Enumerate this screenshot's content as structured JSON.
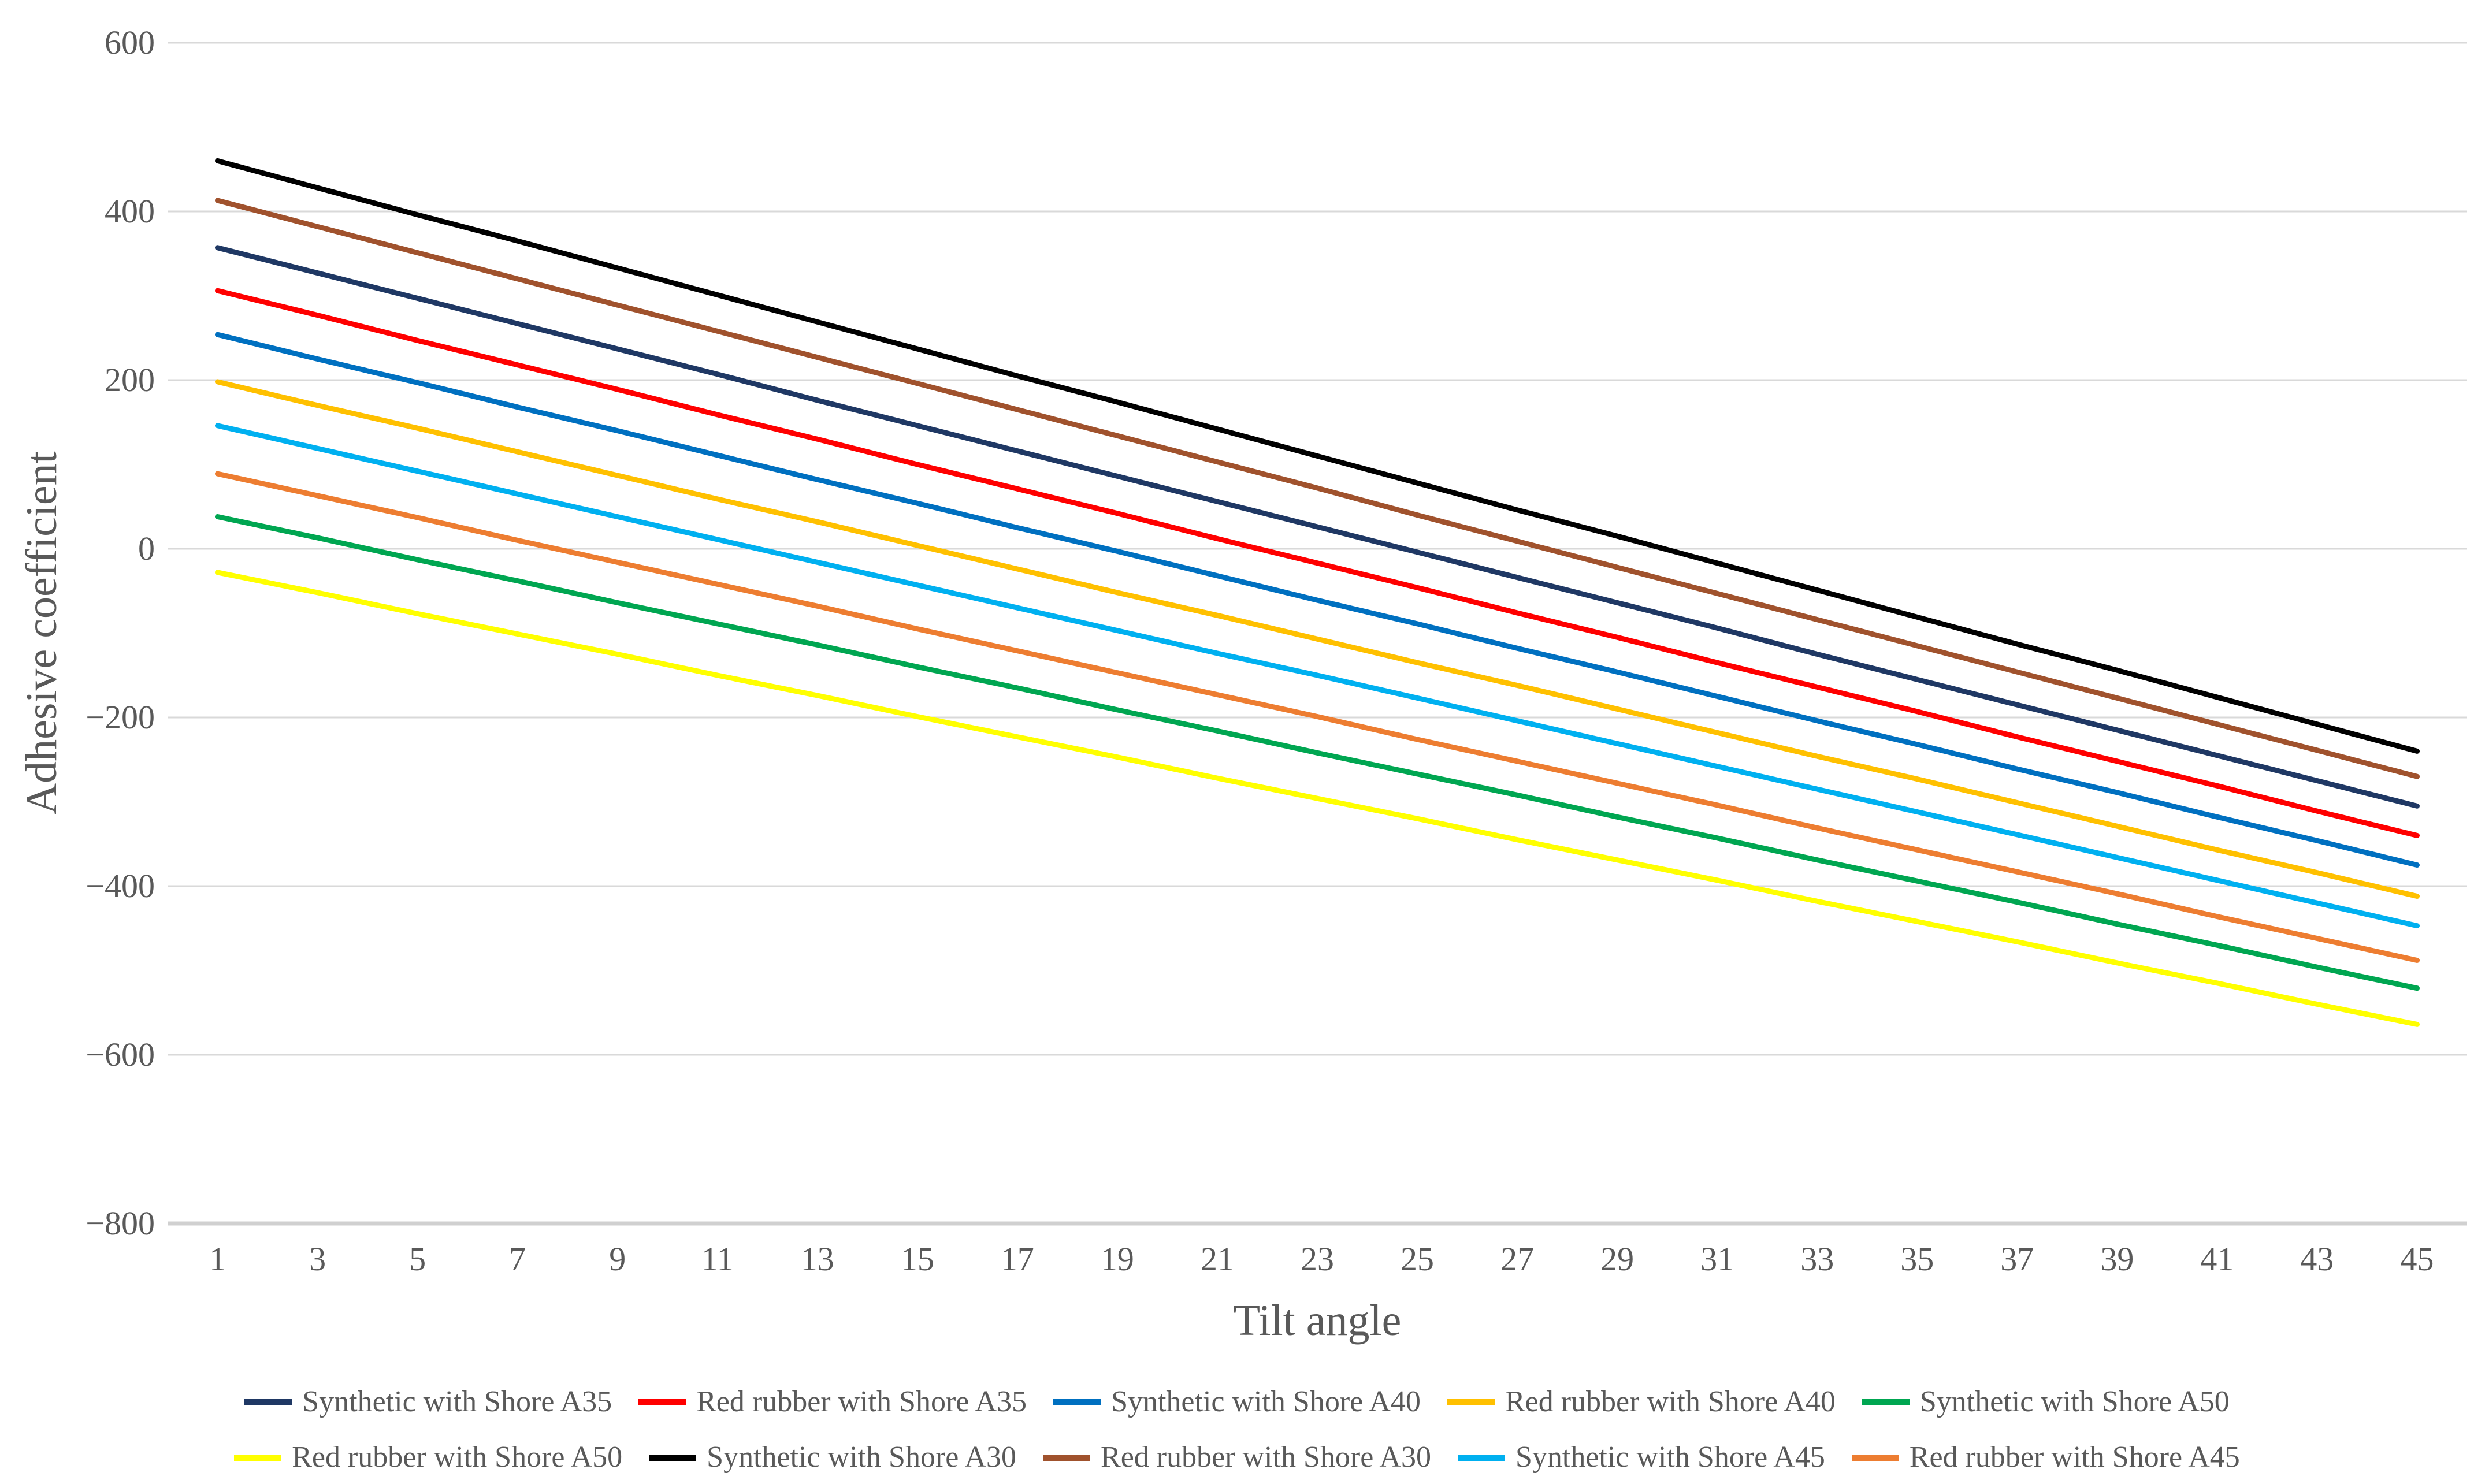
{
  "chart_data": {
    "type": "line",
    "title": "",
    "xlabel": "Tilt angle",
    "ylabel": "Adhesive coefficient",
    "x_tick_labels": [
      "1",
      "3",
      "5",
      "7",
      "9",
      "11",
      "13",
      "15",
      "17",
      "19",
      "21",
      "23",
      "25",
      "27",
      "29",
      "31",
      "33",
      "35",
      "37",
      "39",
      "41",
      "43",
      "45"
    ],
    "ylim": [
      -800,
      600
    ],
    "y_ticks": [
      600,
      400,
      200,
      0,
      -200,
      -400,
      -600,
      -800
    ],
    "y_tick_labels": [
      "600",
      "400",
      "200",
      "0",
      "−200",
      "−400",
      "−600",
      "−800"
    ],
    "grid": "horizontal",
    "legend_position": "bottom",
    "legend_rows": 2,
    "series": [
      {
        "name": "Synthetic with Shore A35",
        "color": "#1F3864",
        "values": [
          357,
          327,
          297,
          267,
          237,
          207,
          176,
          146,
          116,
          86,
          56,
          26,
          -4,
          -34,
          -64,
          -94,
          -125,
          -155,
          -185,
          -215,
          -245,
          -275,
          -305
        ]
      },
      {
        "name": "Red rubber with Shore A35",
        "color": "#FF0000",
        "values": [
          306,
          277,
          247,
          218,
          189,
          159,
          130,
          100,
          71,
          42,
          12,
          -17,
          -46,
          -76,
          -105,
          -135,
          -164,
          -193,
          -223,
          -252,
          -281,
          -311,
          -340
        ]
      },
      {
        "name": "Synthetic with Shore A40",
        "color": "#0070C0",
        "values": [
          254,
          225,
          197,
          168,
          140,
          111,
          82,
          54,
          25,
          -3,
          -32,
          -61,
          -89,
          -118,
          -146,
          -175,
          -204,
          -232,
          -261,
          -289,
          -318,
          -346,
          -375
        ]
      },
      {
        "name": "Red rubber with Shore A40",
        "color": "#FFC000",
        "values": [
          198,
          170,
          143,
          115,
          87,
          59,
          32,
          4,
          -24,
          -52,
          -79,
          -107,
          -135,
          -162,
          -190,
          -218,
          -246,
          -273,
          -301,
          -329,
          -357,
          -384,
          -412
        ]
      },
      {
        "name": "Synthetic with Shore A50",
        "color": "#00A651",
        "values": [
          38,
          13,
          -13,
          -38,
          -64,
          -89,
          -114,
          -140,
          -165,
          -191,
          -216,
          -242,
          -267,
          -292,
          -318,
          -343,
          -369,
          -394,
          -419,
          -445,
          -470,
          -496,
          -521
        ]
      },
      {
        "name": "Red rubber with Shore A50",
        "color": "#FFFF00",
        "values": [
          -28,
          -52,
          -77,
          -101,
          -125,
          -150,
          -174,
          -199,
          -223,
          -247,
          -272,
          -296,
          -320,
          -345,
          -369,
          -393,
          -418,
          -442,
          -466,
          -491,
          -515,
          -540,
          -564
        ]
      },
      {
        "name": "Synthetic with Shore A30",
        "color": "#000000",
        "values": [
          460,
          428,
          396,
          365,
          333,
          301,
          269,
          237,
          205,
          174,
          142,
          110,
          78,
          46,
          15,
          -17,
          -49,
          -81,
          -113,
          -144,
          -176,
          -208,
          -240
        ]
      },
      {
        "name": "Red rubber with Shore A30",
        "color": "#A0522D",
        "values": [
          413,
          382,
          351,
          320,
          289,
          258,
          227,
          196,
          165,
          134,
          103,
          72,
          40,
          9,
          -22,
          -53,
          -84,
          -115,
          -146,
          -177,
          -208,
          -239,
          -270
        ]
      },
      {
        "name": "Synthetic with Shore A45",
        "color": "#00B0F0",
        "values": [
          146,
          119,
          92,
          65,
          38,
          11,
          -16,
          -43,
          -70,
          -97,
          -124,
          -150,
          -177,
          -204,
          -231,
          -258,
          -285,
          -312,
          -339,
          -366,
          -393,
          -420,
          -447
        ]
      },
      {
        "name": "Red rubber with Shore A45",
        "color": "#ED7D31",
        "values": [
          89,
          63,
          37,
          10,
          -16,
          -42,
          -68,
          -95,
          -121,
          -147,
          -173,
          -199,
          -226,
          -252,
          -278,
          -304,
          -331,
          -357,
          -383,
          -409,
          -436,
          -462,
          -488
        ]
      }
    ]
  },
  "styles": {
    "text_color": "#595959",
    "grid_color": "#D9D9D9",
    "axis_line_color": "#D0D0D0",
    "background": "#FFFFFF",
    "line_width": 9
  }
}
